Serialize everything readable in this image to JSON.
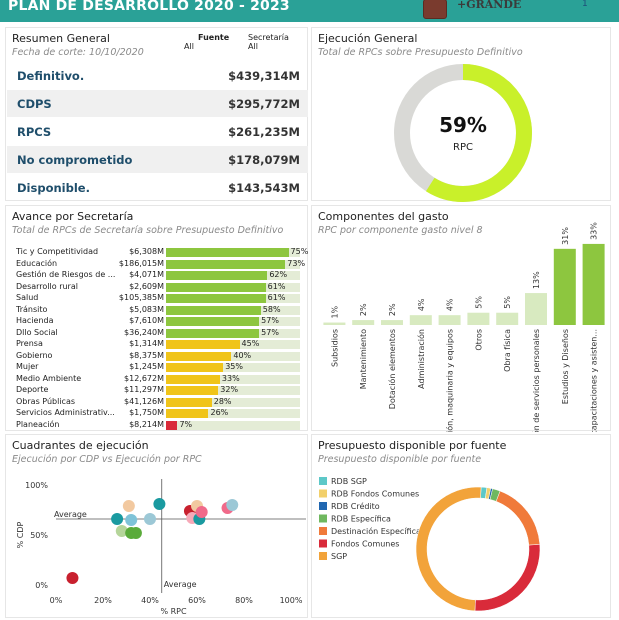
{
  "header": {
    "title": "PLAN DE DESARROLLO",
    "years": "2020 - 2023",
    "logo_text": "+GRANDE",
    "page": "1",
    "bg_color": "#2aa197"
  },
  "resumen": {
    "title": "Resumen General",
    "fecha": "Fecha de corte: 10/10/2020",
    "filter_fuente_label": "Fuente",
    "filter_fuente_value": "All",
    "filter_secretaria_label": "Secretaría",
    "filter_secretaria_value": "All",
    "rows": [
      {
        "label": "Definitivo.",
        "value": "$439,314M"
      },
      {
        "label": "CDPS",
        "value": "$295,772M"
      },
      {
        "label": "RPCS",
        "value": "$261,235M"
      },
      {
        "label": "No comprometido",
        "value": "$178,079M"
      },
      {
        "label": "Disponible.",
        "value": "$143,543M"
      }
    ]
  },
  "ejecucion": {
    "title": "Ejecución General",
    "subtitle": "Total de RPCs sobre Presupuesto Definitivo",
    "percent_label": "59%",
    "percent_value": 0.59,
    "center_label": "RPC",
    "fill_color": "#c9f02a",
    "track_color": "#d9d9d6"
  },
  "secretaria": {
    "title": "Avance por Secretaría",
    "subtitle": "Total de RPCs de Secretaría sobre Presupuesto Definitivo",
    "rows": [
      {
        "name": "Tic y Competitividad",
        "amount": "$6,308M",
        "pct": 75,
        "pct_label": "75%",
        "color": "#8dc63f"
      },
      {
        "name": "Educación",
        "amount": "$186,015M",
        "pct": 73,
        "pct_label": "73%",
        "color": "#8dc63f"
      },
      {
        "name": "Gestión de Riesgos de ...",
        "amount": "$4,071M",
        "pct": 62,
        "pct_label": "62%",
        "color": "#8dc63f"
      },
      {
        "name": "Desarrollo rural",
        "amount": "$2,609M",
        "pct": 61,
        "pct_label": "61%",
        "color": "#8dc63f"
      },
      {
        "name": "Salud",
        "amount": "$105,385M",
        "pct": 61,
        "pct_label": "61%",
        "color": "#8dc63f"
      },
      {
        "name": "Tránsito",
        "amount": "$5,083M",
        "pct": 58,
        "pct_label": "58%",
        "color": "#8dc63f"
      },
      {
        "name": "Hacienda",
        "amount": "$7,610M",
        "pct": 57,
        "pct_label": "57%",
        "color": "#8dc63f"
      },
      {
        "name": "Dllo Social",
        "amount": "$36,240M",
        "pct": 57,
        "pct_label": "57%",
        "color": "#8dc63f"
      },
      {
        "name": "Prensa",
        "amount": "$1,314M",
        "pct": 45,
        "pct_label": "45%",
        "color": "#f0c419"
      },
      {
        "name": "Gobierno",
        "amount": "$8,375M",
        "pct": 40,
        "pct_label": "40%",
        "color": "#f0c419"
      },
      {
        "name": "Mujer",
        "amount": "$1,245M",
        "pct": 35,
        "pct_label": "35%",
        "color": "#f0c419"
      },
      {
        "name": "Medio Ambiente",
        "amount": "$12,672M",
        "pct": 33,
        "pct_label": "33%",
        "color": "#f0c419"
      },
      {
        "name": "Deporte",
        "amount": "$11,297M",
        "pct": 32,
        "pct_label": "32%",
        "color": "#f0c419"
      },
      {
        "name": "Obras Públicas",
        "amount": "$41,126M",
        "pct": 28,
        "pct_label": "28%",
        "color": "#f0c419"
      },
      {
        "name": "Servicios Administrativ...",
        "amount": "$1,750M",
        "pct": 26,
        "pct_label": "26%",
        "color": "#f0c419"
      },
      {
        "name": "Planeación",
        "amount": "$8,214M",
        "pct": 7,
        "pct_label": "7%",
        "color": "#d92b3a"
      }
    ]
  },
  "componentes": {
    "title": "Componentes del gasto",
    "subtitle": "RPC por componente gasto nivel 8",
    "chart_data": {
      "type": "bar",
      "categories": [
        "Subsidios",
        "Mantenimiento",
        "Dotación elementos",
        "Administración",
        "Dotación, maquinaria y equipos",
        "Otros",
        "Obra física",
        "Prestación de servicios personales",
        "Estudios y Diseños",
        "Convenios, capacitaciones y asisten..."
      ],
      "values": [
        1,
        2,
        2,
        4,
        4,
        5,
        5,
        13,
        31,
        33
      ],
      "value_labels": [
        "1%",
        "2%",
        "2%",
        "4%",
        "4%",
        "5%",
        "5%",
        "13%",
        "31%",
        "33%"
      ],
      "ylim": [
        0,
        35
      ],
      "light_color": "#d8eac0",
      "dark_color": "#8dc63f"
    }
  },
  "cuadrantes": {
    "title": "Cuadrantes de ejecución",
    "subtitle": "Ejecución por CDP vs Ejecución por RPC",
    "chart_data": {
      "type": "scatter",
      "xlabel": "% RPC",
      "ylabel": "% CDP",
      "x_ticks": [
        "0%",
        "20%",
        "40%",
        "60%",
        "80%",
        "100%"
      ],
      "y_ticks": [
        "0%",
        "50%",
        "100%"
      ],
      "xlim": [
        0,
        100
      ],
      "ylim": [
        0,
        100
      ],
      "avg_x": 45,
      "avg_y": 66,
      "avg_label_h": "Average",
      "avg_label_v": "Average",
      "points": [
        {
          "x": 7,
          "y": 7,
          "color": "#c8202e"
        },
        {
          "x": 26,
          "y": 66,
          "color": "#1a9aa0"
        },
        {
          "x": 28,
          "y": 54,
          "color": "#b5d59a"
        },
        {
          "x": 31,
          "y": 79,
          "color": "#f2c9a0"
        },
        {
          "x": 32,
          "y": 65,
          "color": "#7fc3d8"
        },
        {
          "x": 32,
          "y": 52,
          "color": "#5aab3a"
        },
        {
          "x": 34,
          "y": 52,
          "color": "#5aab3a"
        },
        {
          "x": 40,
          "y": 66,
          "color": "#9cc8d6"
        },
        {
          "x": 44,
          "y": 81,
          "color": "#1a9aa0"
        },
        {
          "x": 57,
          "y": 74,
          "color": "#c8202e"
        },
        {
          "x": 58,
          "y": 67,
          "color": "#f7a9b8"
        },
        {
          "x": 60,
          "y": 79,
          "color": "#f2c9a0"
        },
        {
          "x": 61,
          "y": 66,
          "color": "#1a9aa0"
        },
        {
          "x": 62,
          "y": 73,
          "color": "#f06a8a"
        },
        {
          "x": 73,
          "y": 77,
          "color": "#f06a8a"
        },
        {
          "x": 75,
          "y": 80,
          "color": "#9cc8d6"
        }
      ]
    }
  },
  "fuente": {
    "title": "Presupuesto disponible por fuente",
    "subtitle": "Presupuesto disponible por fuente",
    "chart_data": {
      "type": "pie",
      "labels": [
        "RDB SGP",
        "RDB Fondos Comunes",
        "RDB Crédito",
        "RDB Específica",
        "Destinación Específica",
        "Fondos Comunes",
        "SGP"
      ],
      "values": [
        1.5,
        1,
        0.5,
        2,
        18,
        27,
        50
      ],
      "colors": [
        "#5dc8c8",
        "#f2d06b",
        "#2167b0",
        "#6fb85f",
        "#f07a3a",
        "#d92b3a",
        "#f2a33a"
      ]
    }
  }
}
